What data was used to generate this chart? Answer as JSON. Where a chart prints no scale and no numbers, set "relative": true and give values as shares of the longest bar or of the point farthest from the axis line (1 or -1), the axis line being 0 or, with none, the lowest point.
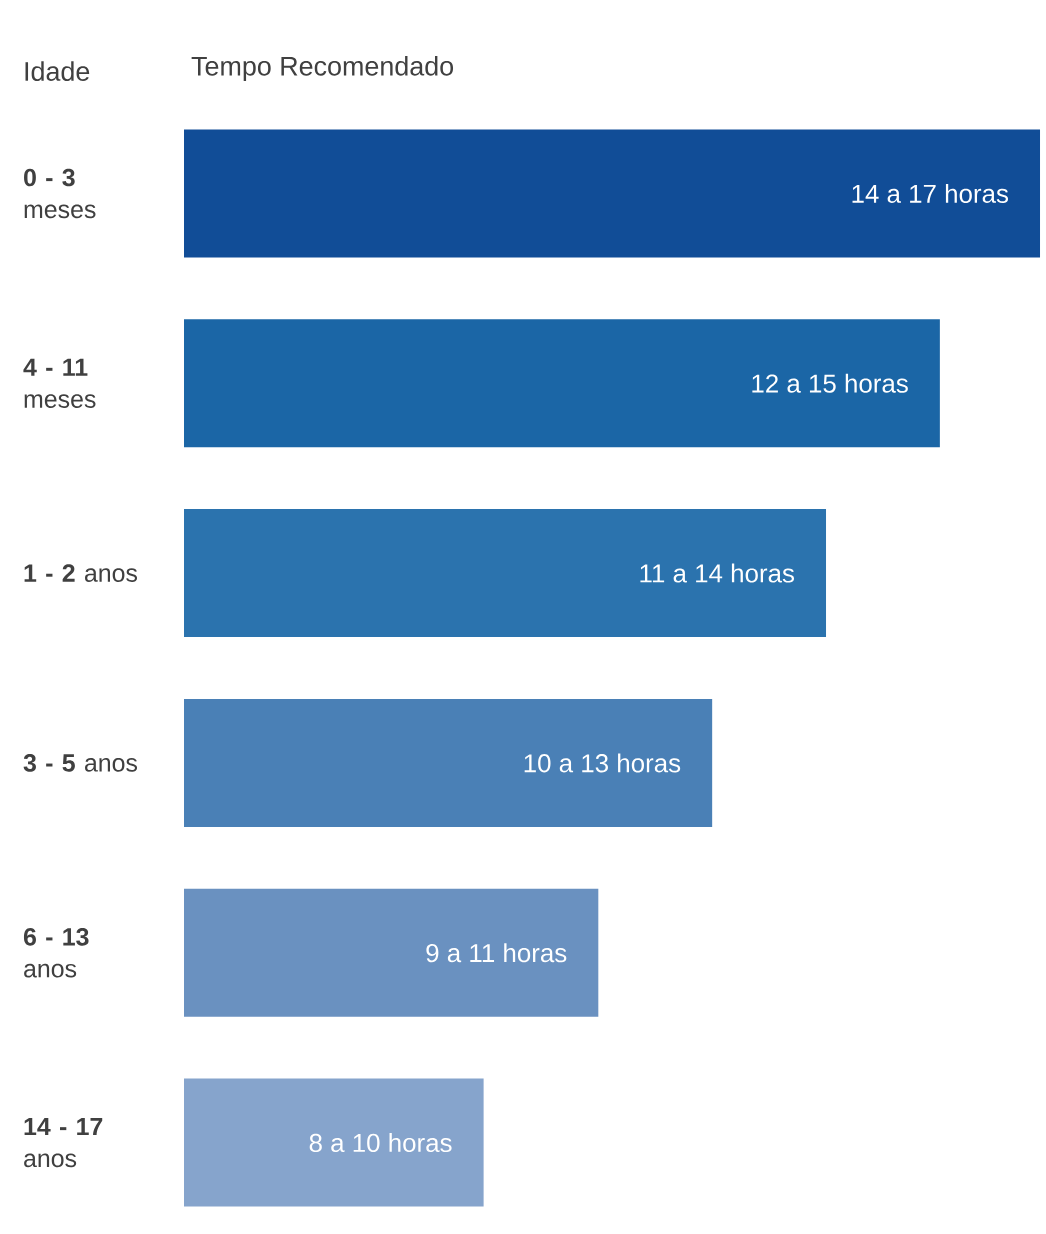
{
  "chart_data": {
    "type": "bar",
    "orientation": "horizontal",
    "relative": true,
    "xlabel": "Tempo Recomendado",
    "ylabel": "Idade",
    "categories": [
      "**0 - 3** meses",
      "**4 - 11** meses",
      "**1 - 2** anos",
      "**3 - 5** anos",
      "**6 - 13** anos",
      "**14 - 17** anos"
    ],
    "values": [
      1,
      0.883,
      0.75,
      0.617,
      0.484,
      0.35
    ],
    "colors": [
      "#114d97",
      "#1b66a6",
      "#2b73ae",
      "#4a80b6",
      "#6a91c0",
      "#86a4cc"
    ],
    "annotations": [
      "14 a 17 horas",
      "12 a 15 horas",
      "11 a 14 horas",
      "10 a 13 horas",
      "9 a 11 horas",
      "8 a 10 horas"
    ]
  }
}
